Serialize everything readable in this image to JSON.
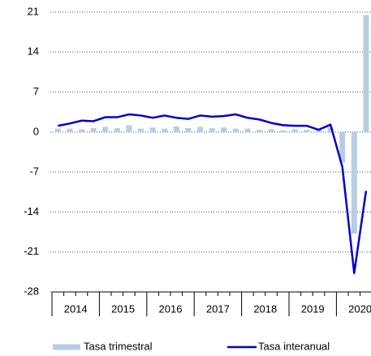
{
  "chart_data": {
    "type": "bar_line",
    "categories": [
      null,
      null,
      null,
      null,
      null,
      null,
      null,
      null,
      null,
      null,
      null,
      null,
      null,
      null,
      null,
      null,
      null,
      null,
      null,
      null,
      null,
      null,
      null,
      null,
      null,
      null,
      null
    ],
    "year_labels": [
      "2014",
      "2015",
      "2016",
      "2017",
      "2018",
      "2019",
      "2020"
    ],
    "series": [
      {
        "name": "Tasa trimestral",
        "type": "bar",
        "color": "#b8cce4",
        "values": [
          0.6,
          0.6,
          0.5,
          0.7,
          0.9,
          0.7,
          1.2,
          0.6,
          0.8,
          0.6,
          1.0,
          0.7,
          0.9,
          0.7,
          0.8,
          0.6,
          0.6,
          0.4,
          0.5,
          0.3,
          0.5,
          0.4,
          0.4,
          0.8,
          -5.3,
          -17.8,
          20.5
        ]
      },
      {
        "name": "Tasa interanual",
        "type": "line",
        "color": "#0000cc",
        "values": [
          1.1,
          1.5,
          2.0,
          1.9,
          2.6,
          2.6,
          3.1,
          2.9,
          2.5,
          2.9,
          2.5,
          2.3,
          2.9,
          2.7,
          2.8,
          3.1,
          2.5,
          2.2,
          1.6,
          1.2,
          1.1,
          1.1,
          0.4,
          1.3,
          -6.1,
          -24.7,
          -10.3
        ]
      }
    ],
    "ylim": [
      -28,
      21
    ],
    "yticks": [
      -28,
      -21,
      -14,
      -7,
      0,
      7,
      14,
      21
    ],
    "grid": true,
    "legend": "bottom"
  }
}
